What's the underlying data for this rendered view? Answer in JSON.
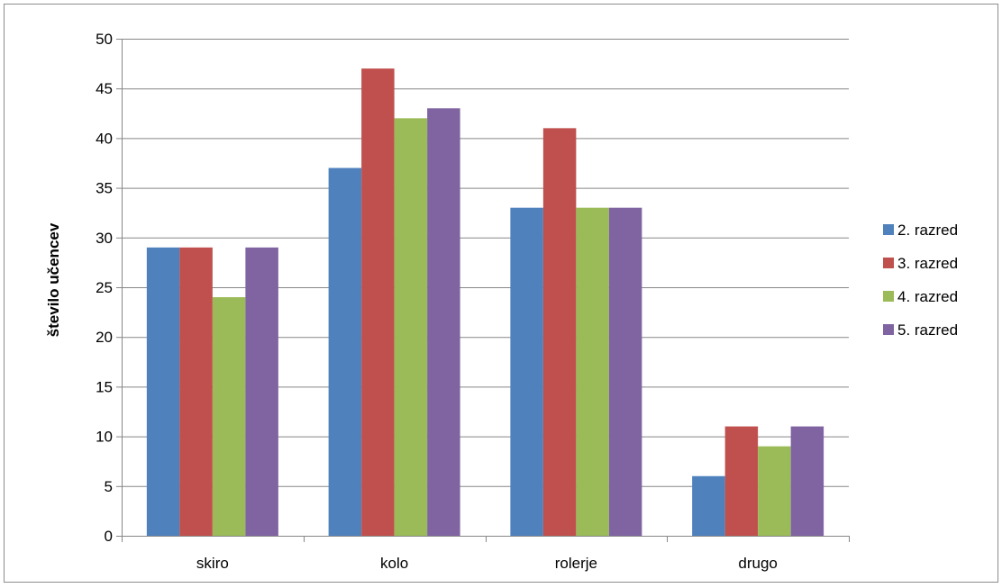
{
  "chart_data": {
    "type": "bar",
    "title": "",
    "xlabel": "",
    "ylabel": "število učencev",
    "categories": [
      "skiro",
      "kolo",
      "rolerje",
      "drugo"
    ],
    "series": [
      {
        "name": "2. razred",
        "color": "#4f81bd",
        "values": [
          29,
          37,
          33,
          6
        ]
      },
      {
        "name": "3. razred",
        "color": "#c0504d",
        "values": [
          29,
          47,
          41,
          11
        ]
      },
      {
        "name": "4. razred",
        "color": "#9bbb59",
        "values": [
          24,
          42,
          33,
          9
        ]
      },
      {
        "name": "5. razred",
        "color": "#8064a2",
        "values": [
          29,
          43,
          33,
          11
        ]
      }
    ],
    "ylim": [
      0,
      50
    ],
    "yticks": [
      0,
      5,
      10,
      15,
      20,
      25,
      30,
      35,
      40,
      45,
      50
    ],
    "grid": true,
    "legend_position": "right"
  }
}
